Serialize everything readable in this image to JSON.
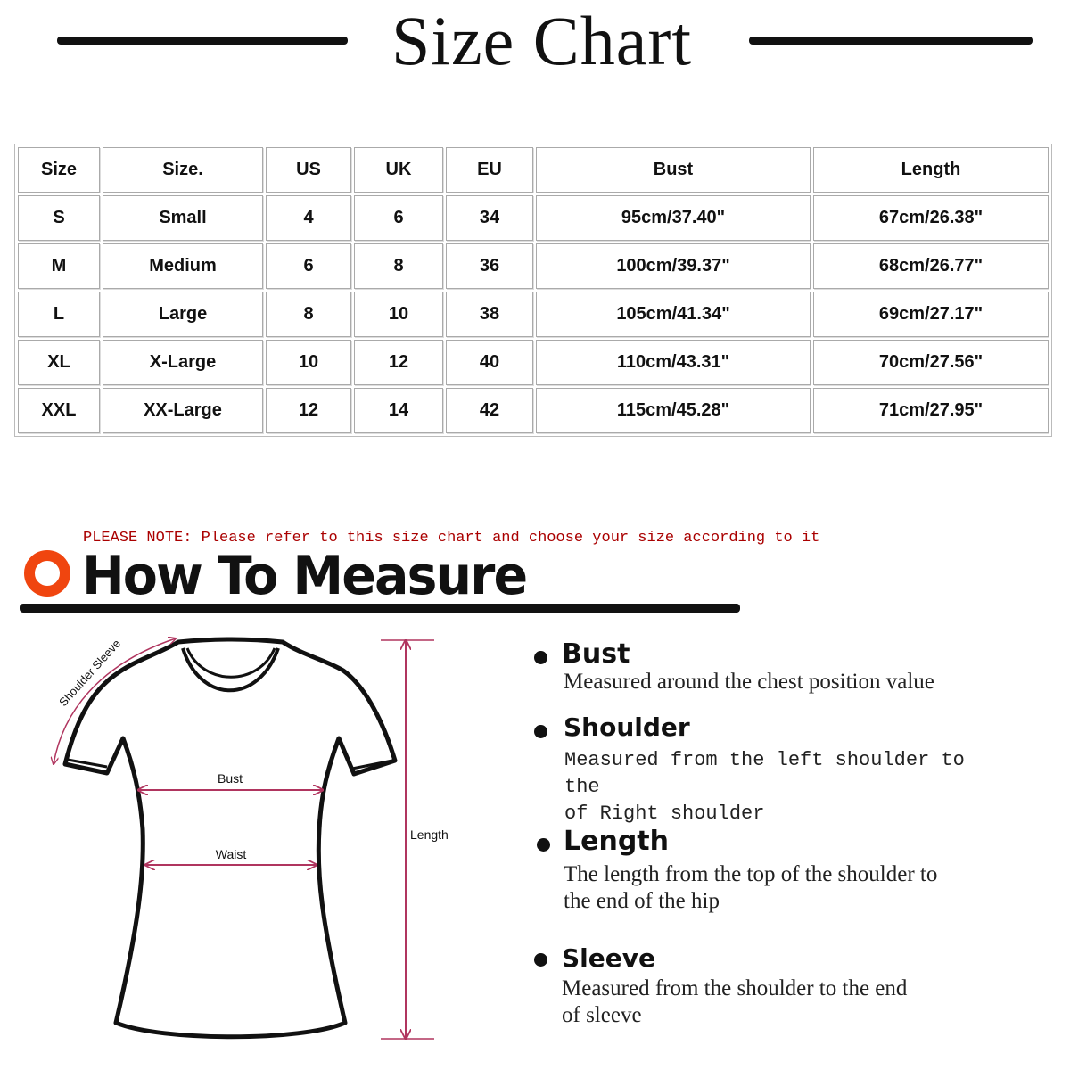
{
  "header": {
    "title": "Size Chart"
  },
  "table": {
    "headers": [
      "Size",
      "Size.",
      "US",
      "UK",
      "EU",
      "Bust",
      "Length"
    ],
    "rows": [
      [
        "S",
        "Small",
        "4",
        "6",
        "34",
        "95cm/37.40\"",
        "67cm/26.38\""
      ],
      [
        "M",
        "Medium",
        "6",
        "8",
        "36",
        "100cm/39.37\"",
        "68cm/26.77\""
      ],
      [
        "L",
        "Large",
        "8",
        "10",
        "38",
        "105cm/41.34\"",
        "69cm/27.17\""
      ],
      [
        "XL",
        "X-Large",
        "10",
        "12",
        "40",
        "110cm/43.31\"",
        "70cm/27.56\""
      ],
      [
        "XXL",
        "XX-Large",
        "12",
        "14",
        "42",
        "115cm/45.28\"",
        "71cm/27.95\""
      ]
    ]
  },
  "note": "PLEASE NOTE: Please refer to this size chart and choose your size according to it",
  "measure": {
    "title": "How To Measure",
    "accent": "#f0450f",
    "line_color": "#b0355f",
    "diagram": {
      "shoulder": "Shoulder Sleeve",
      "bust": "Bust",
      "waist": "Waist",
      "length": "Length"
    },
    "items": [
      {
        "title": "Bust",
        "lines": [
          "Measured around the chest position value"
        ]
      },
      {
        "title": "Shoulder",
        "lines": [
          "Measured from the left shoulder to the",
          "of Right shoulder"
        ]
      },
      {
        "title": "Length",
        "lines": [
          "The length from the top of the shoulder to",
          "the end of the hip"
        ]
      },
      {
        "title": "Sleeve",
        "lines": [
          "Measured from the shoulder to the end",
          "of sleeve"
        ]
      }
    ]
  }
}
